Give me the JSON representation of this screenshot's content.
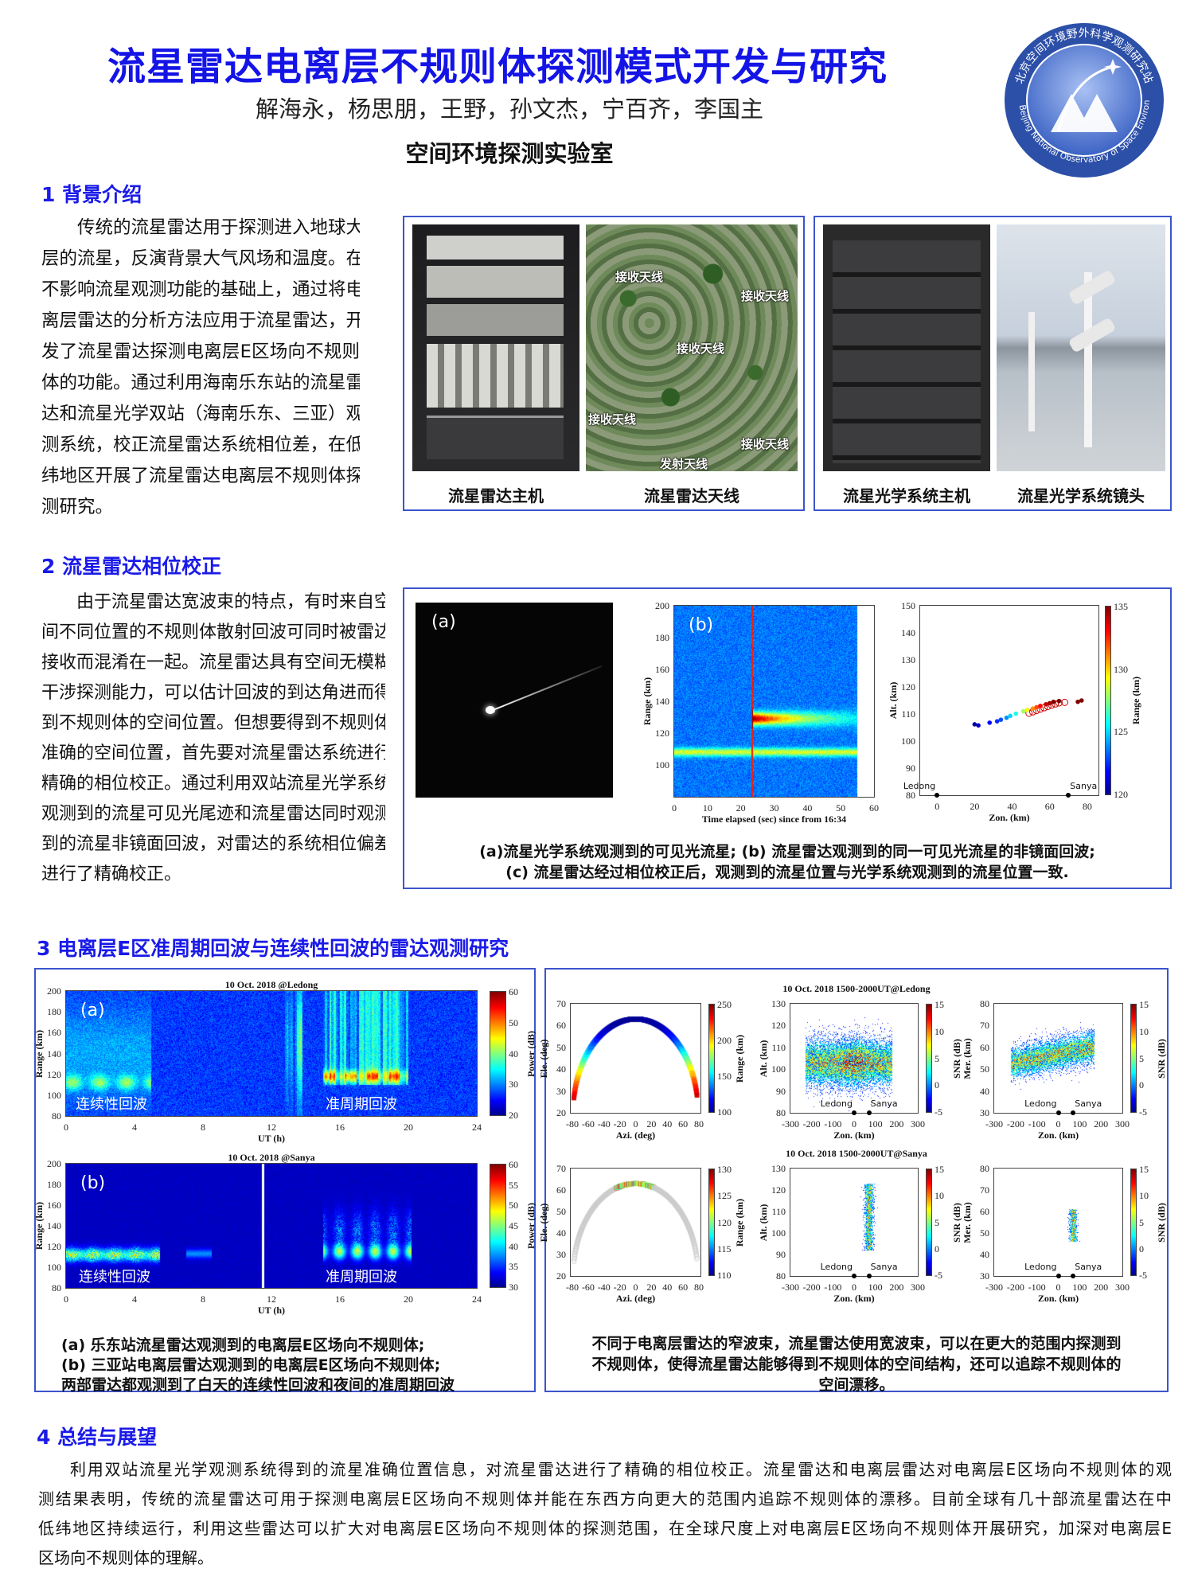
{
  "header": {
    "title": "流星雷达电离层不规则体探测模式开发与研究",
    "authors": "解海永，杨思朋，王野，孙文杰，宁百齐，李国主",
    "lab": "空间环境探测实验室",
    "logo": {
      "text_cn": "北京空间环境野外科学观测研究站",
      "text_en": "Beijing National Observatory of Space Environment",
      "colors": {
        "ring": "#2c4fa8",
        "inner": "#6d8fe0"
      }
    }
  },
  "colors": {
    "heading": "#1a1ae8",
    "title": "#1414e6",
    "box_border": "#3b55cc"
  },
  "section1": {
    "heading": "1 背景介绍",
    "lines": [
      "传统的流星雷达用于探测进入地球大气",
      "层的流星，反演背景大气风场和温度。在",
      "不影响流星观测功能的基础上，通过将电",
      "离层雷达的分析方法应用于流星雷达，开",
      "发了流星雷达探测电离层E区场向不规则",
      "体的功能。通过利用海南乐东站的流星雷",
      "达和流星光学双站（海南乐东、三亚）观",
      "测系统，校正流星雷达系统相位差，在低",
      "纬地区开展了流星雷达电离层不规则体探",
      "测研究。"
    ],
    "photos": [
      {
        "label": "流星雷达主机"
      },
      {
        "label": "流星雷达天线",
        "tags": [
          "接收天线",
          "接收天线",
          "接收天线",
          "接收天线",
          "接收天线",
          "发射天线"
        ]
      },
      {
        "label": "流星光学系统主机"
      },
      {
        "label": "流星光学系统镜头"
      }
    ]
  },
  "section2": {
    "heading": "2 流星雷达相位校正",
    "lines": [
      "由于流星雷达宽波束的特点，有时来自空",
      "间不同位置的不规则体散射回波可同时被雷达",
      "接收而混淆在一起。流星雷达具有空间无模糊",
      "干涉探测能力，可以估计回波的到达角进而得",
      "到不规则体的空间位置。但想要得到不规则体",
      "准确的空间位置，首先要对流星雷达系统进行",
      "精确的相位校正。通过利用双站流星光学系统",
      "观测到的流星可见光尾迹和流星雷达同时观测",
      "到的流星非镜面回波，对雷达的系统相位偏差",
      "进行了精确校正。"
    ],
    "fig": {
      "a": {
        "tag": "(a)"
      },
      "b": {
        "tag": "(b)",
        "xlim": [
          0,
          60
        ],
        "ylim": [
          80,
          200
        ],
        "xticks": [
          0,
          10,
          20,
          30,
          40,
          50,
          60
        ],
        "yticks": [
          100,
          120,
          140,
          160,
          180,
          200
        ],
        "xlabel": "Time elapsed (sec) since from 16:34",
        "ylabel": "Range (km)"
      },
      "c": {
        "tag": "(c)",
        "xlim": [
          -9,
          86
        ],
        "ylim": [
          80,
          150
        ],
        "xticks": [
          0,
          20,
          40,
          60,
          80
        ],
        "yticks": [
          80,
          90,
          100,
          110,
          120,
          130,
          140,
          150
        ],
        "xlabel": "Zon. (km)",
        "ylabel": "Alt. (km)",
        "cbar": {
          "lim": [
            120,
            135
          ],
          "ticks": [
            120,
            125,
            130,
            135
          ],
          "label": "Range (km)"
        },
        "stations": [
          {
            "name": "Ledong",
            "zon": 0
          },
          {
            "name": "Sanya",
            "zon": 70
          }
        ],
        "radar_points": [
          [
            20,
            106.2,
            120.5
          ],
          [
            22,
            105.8,
            121
          ],
          [
            28,
            106.8,
            122
          ],
          [
            32,
            107.3,
            122.5
          ],
          [
            34,
            107.9,
            123
          ],
          [
            37,
            108.6,
            124
          ],
          [
            39,
            109.3,
            125
          ],
          [
            42,
            110.1,
            126
          ],
          [
            46,
            111,
            128
          ],
          [
            48,
            111.5,
            129.5
          ],
          [
            51,
            112,
            131
          ],
          [
            53,
            112.5,
            132
          ],
          [
            55,
            113,
            133
          ],
          [
            58,
            113.6,
            134
          ],
          [
            60,
            114,
            134.5
          ],
          [
            62,
            114.5,
            135
          ],
          [
            65,
            114.8,
            135
          ],
          [
            75,
            114.5,
            135
          ],
          [
            77,
            115,
            135
          ]
        ],
        "optical_points": [
          [
            49,
            110.3
          ],
          [
            51,
            110.8
          ],
          [
            53,
            111.3
          ],
          [
            55,
            111.8
          ],
          [
            57,
            112.3
          ],
          [
            59,
            112.8
          ],
          [
            61,
            113.3
          ],
          [
            63,
            113.7
          ],
          [
            65,
            114.1
          ],
          [
            68,
            114.3
          ]
        ]
      },
      "caption": [
        "(a)流星光学系统观测到的可见光流星; (b) 流星雷达观测到的同一可见光流星的非镜面回波;",
        "(c) 流星雷达经过相位校正后，观测到的流星位置与光学系统观测到的流星位置一致."
      ]
    }
  },
  "section3": {
    "heading": "3 电离层E区准周期回波与连续性回波的雷达观测研究",
    "left": {
      "a": {
        "tag": "(a)",
        "title": "10 Oct. 2018 @Ledong",
        "xlim": [
          0,
          24
        ],
        "ylim": [
          80,
          200
        ],
        "xticks": [
          0,
          4,
          8,
          12,
          16,
          20,
          24
        ],
        "yticks": [
          80,
          100,
          120,
          140,
          160,
          180,
          200
        ],
        "xlabel": "UT (h)",
        "ylabel": "Range (km)",
        "cbar": {
          "lim": [
            20,
            60
          ],
          "ticks": [
            20,
            30,
            40,
            50,
            60
          ],
          "label": "Power (dB)"
        },
        "anno": [
          "连续性回波",
          "准周期回波"
        ]
      },
      "b": {
        "tag": "(b)",
        "title": "10 Oct. 2018 @Sanya",
        "xlim": [
          0,
          24
        ],
        "ylim": [
          80,
          200
        ],
        "xticks": [
          0,
          4,
          8,
          12,
          16,
          20,
          24
        ],
        "yticks": [
          80,
          100,
          120,
          140,
          160,
          180,
          200
        ],
        "xlabel": "UT (h)",
        "ylabel": "Range (km)",
        "cbar": {
          "lim": [
            30,
            60
          ],
          "ticks": [
            30,
            35,
            40,
            45,
            50,
            55,
            60
          ],
          "label": "Power (dB)"
        },
        "anno": [
          "连续性回波",
          "准周期回波"
        ]
      },
      "caption": [
        "(a) 乐东站流星雷达观测到的电离层E区场向不规则体;",
        "(b) 三亚站电离层雷达观测到的电离层E区场向不规则体;",
        "两部雷达都观测到了白天的连续性回波和夜间的准周期回波"
      ]
    },
    "right": {
      "rows": [
        {
          "title": "10 Oct. 2018 1500-2000UT@Ledong",
          "panels": [
            {
              "xlim": [
                -82,
                82
              ],
              "ylim": [
                20,
                70
              ],
              "xticks": [
                -80,
                -60,
                -40,
                -20,
                0,
                20,
                40,
                60,
                80
              ],
              "yticks": [
                20,
                30,
                40,
                50,
                60,
                70
              ],
              "xlabel": "Azi. (deg)",
              "ylabel": "Ele. (deg)",
              "cbar": {
                "lim": [
                  100,
                  250
                ],
                "ticks": [
                  100,
                  150,
                  200,
                  250
                ],
                "label": "Range (km)"
              }
            },
            {
              "xlim": [
                -300,
                300
              ],
              "ylim": [
                80,
                130
              ],
              "xticks": [
                -300,
                -200,
                -100,
                0,
                100,
                200,
                300
              ],
              "yticks": [
                80,
                90,
                100,
                110,
                120,
                130
              ],
              "xlabel": "Zon. (km)",
              "ylabel": "Alt. (km)",
              "cbar": {
                "lim": [
                  -5,
                  15
                ],
                "ticks": [
                  -5,
                  0,
                  5,
                  10,
                  15
                ],
                "label": "SNR (dB)"
              },
              "stations": [
                {
                  "name": "Ledong",
                  "zon": 0
                },
                {
                  "name": "Sanya",
                  "zon": 70
                }
              ]
            },
            {
              "xlim": [
                -300,
                300
              ],
              "ylim": [
                30,
                80
              ],
              "xticks": [
                -300,
                -200,
                -100,
                0,
                100,
                200,
                300
              ],
              "yticks": [
                30,
                40,
                50,
                60,
                70,
                80
              ],
              "xlabel": "Zon. (km)",
              "ylabel": "Mer. (km)",
              "cbar": {
                "lim": [
                  -5,
                  15
                ],
                "ticks": [
                  -5,
                  0,
                  5,
                  10,
                  15
                ],
                "label": "SNR (dB)"
              },
              "stations": [
                {
                  "name": "Ledong",
                  "zon": 0
                },
                {
                  "name": "Sanya",
                  "zon": 70
                }
              ]
            }
          ]
        },
        {
          "title": "10 Oct. 2018 1500-2000UT@Sanya",
          "panels": [
            {
              "xlim": [
                -82,
                82
              ],
              "ylim": [
                20,
                70
              ],
              "xticks": [
                -80,
                -60,
                -40,
                -20,
                0,
                20,
                40,
                60,
                80
              ],
              "yticks": [
                20,
                30,
                40,
                50,
                60,
                70
              ],
              "xlabel": "Azi. (deg)",
              "ylabel": "Ele. (deg)",
              "cbar": {
                "lim": [
                  110,
                  130
                ],
                "ticks": [
                  110,
                  115,
                  120,
                  125,
                  130
                ],
                "label": "Range (km)"
              }
            },
            {
              "xlim": [
                -300,
                300
              ],
              "ylim": [
                80,
                130
              ],
              "xticks": [
                -300,
                -200,
                -100,
                0,
                100,
                200,
                300
              ],
              "yticks": [
                80,
                90,
                100,
                110,
                120,
                130
              ],
              "xlabel": "Zon. (km)",
              "ylabel": "Alt. (km)",
              "cbar": {
                "lim": [
                  -5,
                  15
                ],
                "ticks": [
                  -5,
                  0,
                  5,
                  10,
                  15
                ],
                "label": "SNR (dB)"
              },
              "stations": [
                {
                  "name": "Ledong",
                  "zon": 0
                },
                {
                  "name": "Sanya",
                  "zon": 70
                }
              ]
            },
            {
              "xlim": [
                -300,
                300
              ],
              "ylim": [
                30,
                80
              ],
              "xticks": [
                -300,
                -200,
                -100,
                0,
                100,
                200,
                300
              ],
              "yticks": [
                30,
                40,
                50,
                60,
                70,
                80
              ],
              "xlabel": "Zon. (km)",
              "ylabel": "Mer. (km)",
              "cbar": {
                "lim": [
                  -5,
                  15
                ],
                "ticks": [
                  -5,
                  0,
                  5,
                  10,
                  15
                ],
                "label": "SNR (dB)"
              },
              "stations": [
                {
                  "name": "Ledong",
                  "zon": 0
                },
                {
                  "name": "Sanya",
                  "zon": 70
                }
              ]
            }
          ]
        }
      ],
      "caption": [
        "不同于电离层雷达的窄波束，流星雷达使用宽波束，可以在更大的范围内探测到",
        "不规则体，使得流星雷达能够得到不规则体的空间结构，还可以追踪不规则体的",
        "空间漂移。"
      ]
    }
  },
  "section4": {
    "heading": "4 总结与展望",
    "lines": [
      "利用双站流星光学观测系统得到的流星准确位置信息，对流星雷达进行了精确的相位校正。流星雷达和电离层雷达对电离层E区场向不规则体的观",
      "测结果表明，传统的流星雷达可用于探测电离层E区场向不规则体并能在东西方向更大的范围内追踪不规则体的漂移。目前全球有几十部流星雷达在中",
      "低纬地区持续运行，利用这些雷达可以扩大对电离层E区场向不规则体的探测范围，在全球尺度上对电离层E区场向不规则体开展研究，加深对电离层E",
      "区场向不规则体的理解。"
    ]
  }
}
